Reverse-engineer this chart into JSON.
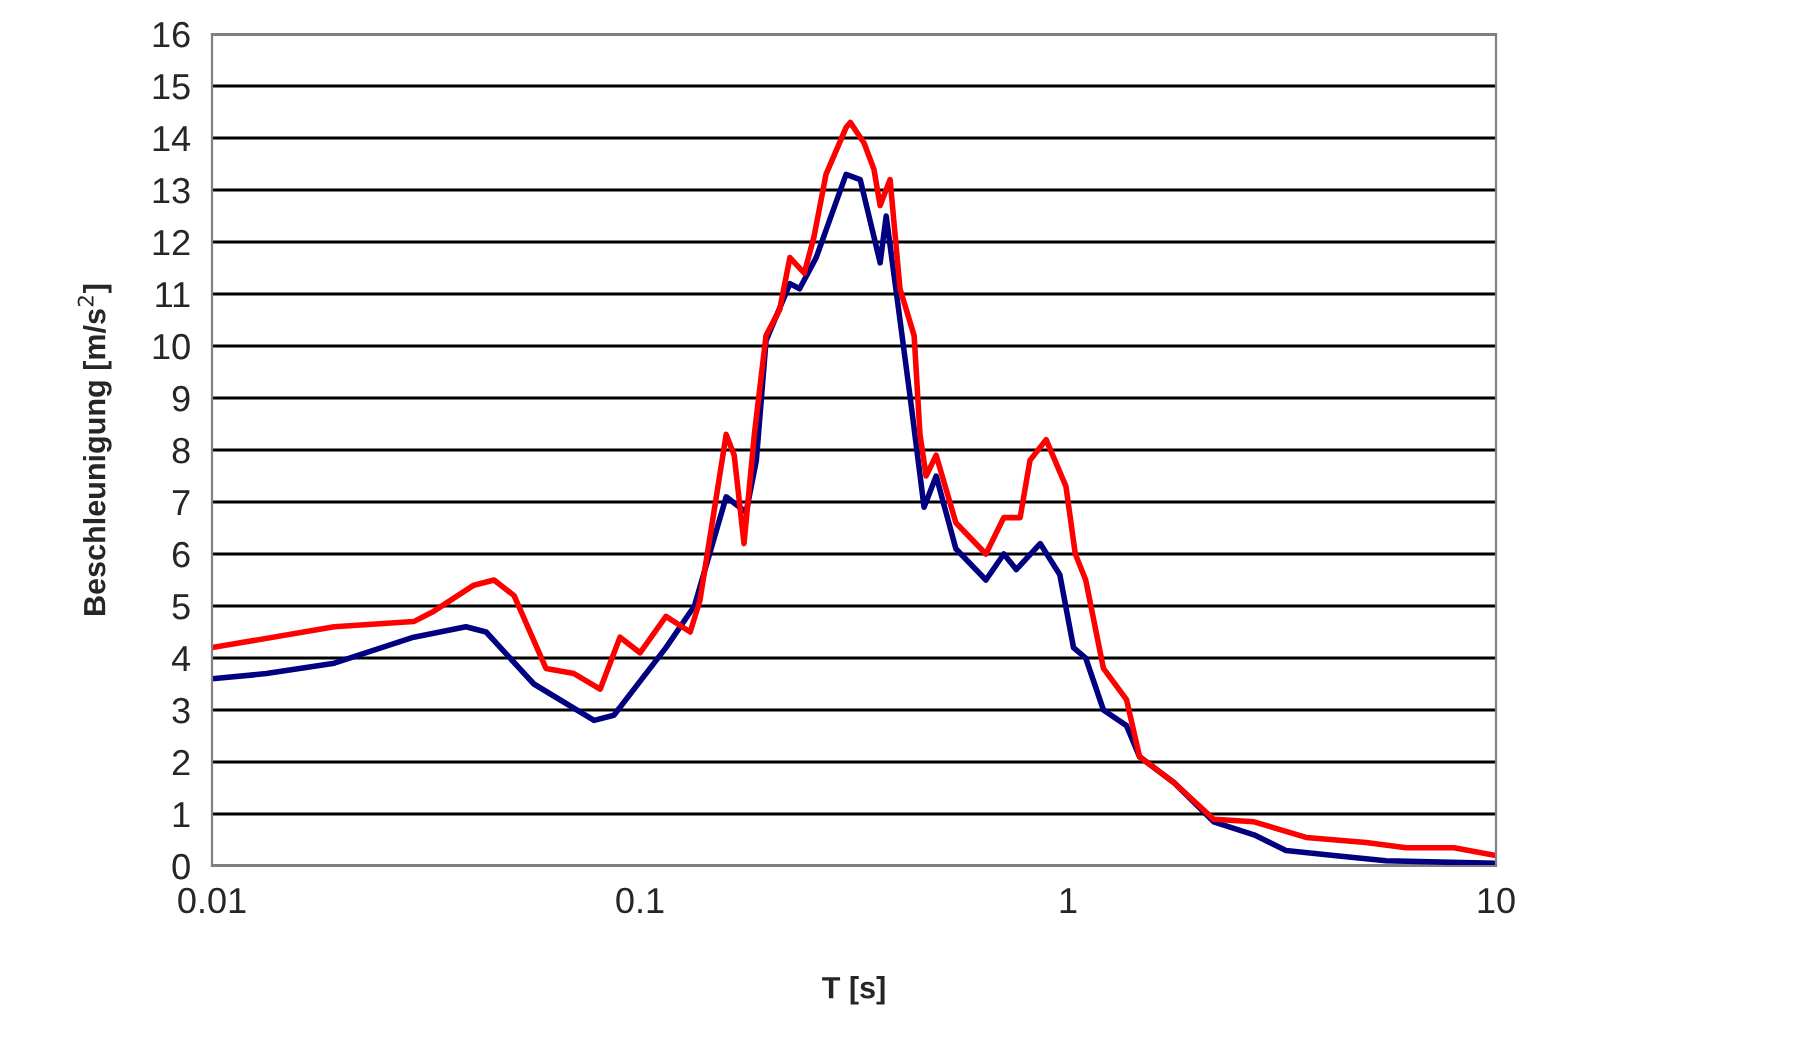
{
  "chart_data": {
    "type": "line",
    "xlabel": "T [s]",
    "ylabel": "Beschleunigung [m/s$^{2}$]",
    "log": "x",
    "xlim": [
      0.01,
      10
    ],
    "xticks": [
      0.01,
      0.1,
      1,
      10
    ],
    "ylim": [
      0,
      16
    ],
    "yticks": [
      0,
      1,
      2,
      3,
      4,
      5,
      6,
      7,
      8,
      9,
      10,
      11,
      12,
      13,
      14,
      15,
      16
    ],
    "grid": "y",
    "marker": "none",
    "line_style": "solid",
    "series": [
      {
        "color": "#000080",
        "x": [
          0.01,
          0.0134,
          0.0193,
          0.0296,
          0.0392,
          0.0437,
          0.0565,
          0.0781,
          0.0869,
          0.115,
          0.134,
          0.159,
          0.177,
          0.187,
          0.197,
          0.224,
          0.236,
          0.258,
          0.303,
          0.327,
          0.364,
          0.376,
          0.405,
          0.428,
          0.461,
          0.492,
          0.547,
          0.643,
          0.708,
          0.757,
          0.861,
          0.957,
          1.03,
          1.1,
          1.21,
          1.37,
          1.47,
          1.77,
          2.19,
          2.72,
          3.23,
          4.18,
          5.53,
          10
        ],
        "values": [
          3.6,
          3.7,
          3.9,
          4.4,
          4.6,
          4.5,
          3.5,
          2.8,
          2.9,
          4.2,
          5.0,
          7.1,
          6.8,
          7.8,
          10.1,
          11.2,
          11.1,
          11.7,
          13.3,
          13.2,
          11.6,
          12.5,
          10.5,
          9.0,
          6.9,
          7.5,
          6.1,
          5.5,
          6.0,
          5.7,
          6.2,
          5.6,
          4.2,
          4.0,
          3.0,
          2.7,
          2.1,
          1.6,
          0.85,
          0.6,
          0.3,
          0.2,
          0.1,
          0.05
        ]
      },
      {
        "color": "#ff0000",
        "x": [
          0.01,
          0.0193,
          0.0296,
          0.033,
          0.0409,
          0.0456,
          0.0508,
          0.0603,
          0.0701,
          0.0807,
          0.0898,
          0.1,
          0.115,
          0.131,
          0.138,
          0.159,
          0.166,
          0.175,
          0.185,
          0.197,
          0.212,
          0.224,
          0.242,
          0.255,
          0.272,
          0.303,
          0.31,
          0.334,
          0.352,
          0.364,
          0.384,
          0.405,
          0.437,
          0.451,
          0.466,
          0.492,
          0.547,
          0.643,
          0.708,
          0.773,
          0.815,
          0.889,
          0.989,
          1.04,
          1.1,
          1.21,
          1.37,
          1.47,
          1.77,
          2.19,
          2.72,
          3.6,
          4.97,
          6.17,
          7.98,
          10
        ],
        "values": [
          4.2,
          4.6,
          4.7,
          4.9,
          5.4,
          5.5,
          5.2,
          3.8,
          3.7,
          3.4,
          4.4,
          4.1,
          4.8,
          4.5,
          5.1,
          8.3,
          7.9,
          6.2,
          8.3,
          10.2,
          10.7,
          11.7,
          11.4,
          12.1,
          13.3,
          14.2,
          14.3,
          13.9,
          13.4,
          12.7,
          13.2,
          11.1,
          10.2,
          8.3,
          7.5,
          7.9,
          6.6,
          6.0,
          6.7,
          6.7,
          7.8,
          8.2,
          7.3,
          6.0,
          5.5,
          3.8,
          3.2,
          2.1,
          1.6,
          0.9,
          0.85,
          0.55,
          0.45,
          0.35,
          0.35,
          0.2
        ]
      }
    ]
  }
}
